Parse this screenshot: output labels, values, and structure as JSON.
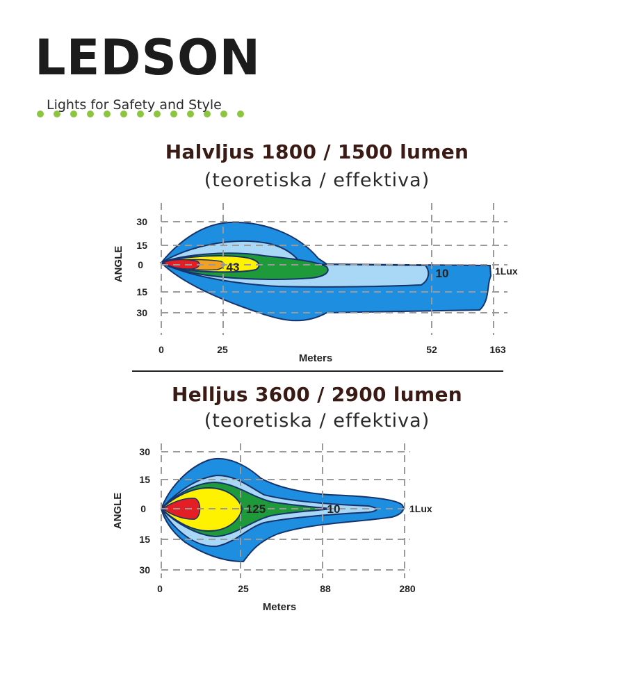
{
  "brand": {
    "name": "LEDSON",
    "tagline": "Lights for Safety and Style",
    "colors": {
      "wordmark": "#1c1c1c",
      "dots": "#8cc63f"
    }
  },
  "charts": [
    {
      "title": "Halvljus 1800 / 1500 lumen",
      "subtitle": "(teoretiska / effektiva)",
      "ylabel": "ANGLE",
      "xlabel": "Meters",
      "y_ticks": [
        "30",
        "15",
        "0",
        "15",
        "30"
      ],
      "x_ticks": [
        "0",
        "25",
        "52",
        "163"
      ],
      "zone_labels": [
        "43",
        "10",
        "1Lux"
      ]
    },
    {
      "title": "Helljus 3600 / 2900 lumen",
      "subtitle": "(teoretiska / effektiva)",
      "ylabel": "ANGLE",
      "xlabel": "Meters",
      "y_ticks": [
        "30",
        "15",
        "0",
        "15",
        "30"
      ],
      "x_ticks": [
        "0",
        "25",
        "88",
        "280"
      ],
      "zone_labels": [
        "125",
        "10",
        "1Lux"
      ]
    }
  ],
  "zone_colors": {
    "outer": "#1e8ee0",
    "light": "#a9d8f6",
    "green": "#1f9a3a",
    "yellow": "#fff200",
    "orange": "#f4a021",
    "red": "#e41e25"
  }
}
